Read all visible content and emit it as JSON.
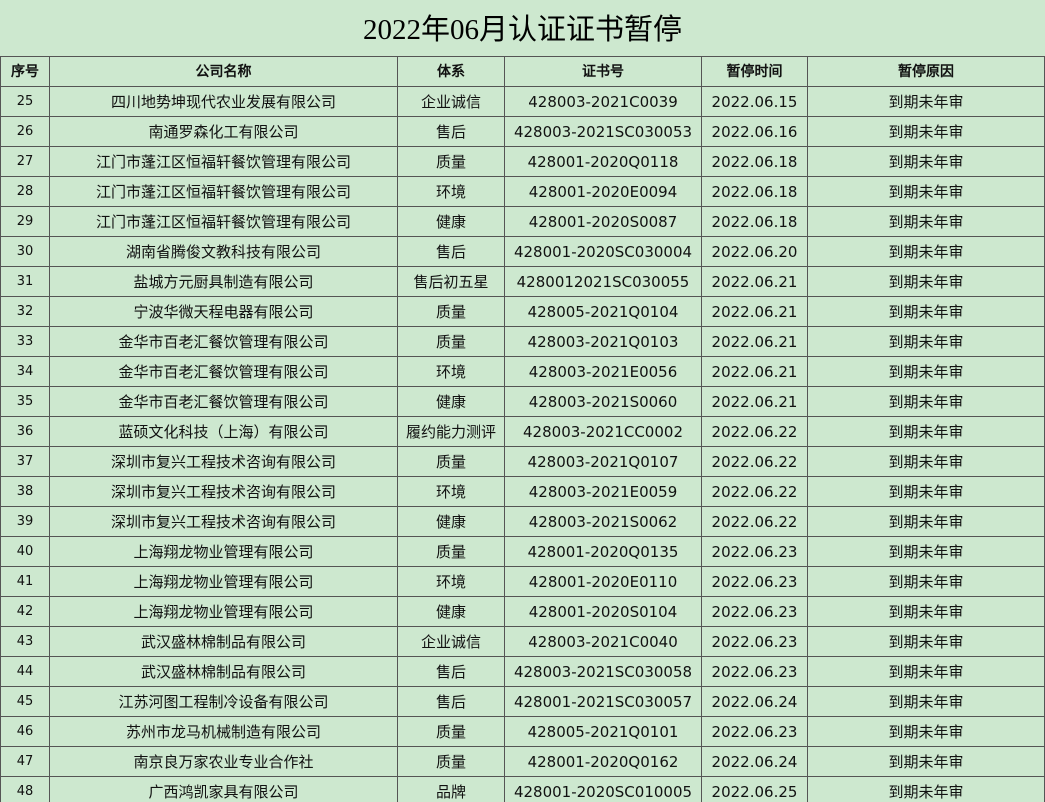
{
  "title": "2022年06月认证证书暂停",
  "table": {
    "headers": [
      "序号",
      "公司名称",
      "体系",
      "证书号",
      "暂停时间",
      "暂停原因"
    ],
    "rows": [
      [
        "25",
        "四川地势坤现代农业发展有限公司",
        "企业诚信",
        "428003-2021C0039",
        "2022.06.15",
        "到期未年审"
      ],
      [
        "26",
        "南通罗森化工有限公司",
        "售后",
        "428003-2021SC030053",
        "2022.06.16",
        "到期未年审"
      ],
      [
        "27",
        "江门市蓬江区恒福轩餐饮管理有限公司",
        "质量",
        "428001-2020Q0118",
        "2022.06.18",
        "到期未年审"
      ],
      [
        "28",
        "江门市蓬江区恒福轩餐饮管理有限公司",
        "环境",
        "428001-2020E0094",
        "2022.06.18",
        "到期未年审"
      ],
      [
        "29",
        "江门市蓬江区恒福轩餐饮管理有限公司",
        "健康",
        "428001-2020S0087",
        "2022.06.18",
        "到期未年审"
      ],
      [
        "30",
        "湖南省腾俊文教科技有限公司",
        "售后",
        "428001-2020SC030004",
        "2022.06.20",
        "到期未年审"
      ],
      [
        "31",
        "盐城方元厨具制造有限公司",
        "售后初五星",
        "4280012021SC030055",
        "2022.06.21",
        "到期未年审"
      ],
      [
        "32",
        "宁波华微天程电器有限公司",
        "质量",
        "428005-2021Q0104",
        "2022.06.21",
        "到期未年审"
      ],
      [
        "33",
        "金华市百老汇餐饮管理有限公司",
        "质量",
        "428003-2021Q0103",
        "2022.06.21",
        "到期未年审"
      ],
      [
        "34",
        "金华市百老汇餐饮管理有限公司",
        "环境",
        "428003-2021E0056",
        "2022.06.21",
        "到期未年审"
      ],
      [
        "35",
        "金华市百老汇餐饮管理有限公司",
        "健康",
        "428003-2021S0060",
        "2022.06.21",
        "到期未年审"
      ],
      [
        "36",
        "蓝硕文化科技（上海）有限公司",
        "履约能力测评",
        "428003-2021CC0002",
        "2022.06.22",
        "到期未年审"
      ],
      [
        "37",
        "深圳市复兴工程技术咨询有限公司",
        "质量",
        "428003-2021Q0107",
        "2022.06.22",
        "到期未年审"
      ],
      [
        "38",
        "深圳市复兴工程技术咨询有限公司",
        "环境",
        "428003-2021E0059",
        "2022.06.22",
        "到期未年审"
      ],
      [
        "39",
        "深圳市复兴工程技术咨询有限公司",
        "健康",
        "428003-2021S0062",
        "2022.06.22",
        "到期未年审"
      ],
      [
        "40",
        "上海翔龙物业管理有限公司",
        "质量",
        "428001-2020Q0135",
        "2022.06.23",
        "到期未年审"
      ],
      [
        "41",
        "上海翔龙物业管理有限公司",
        "环境",
        "428001-2020E0110",
        "2022.06.23",
        "到期未年审"
      ],
      [
        "42",
        "上海翔龙物业管理有限公司",
        "健康",
        "428001-2020S0104",
        "2022.06.23",
        "到期未年审"
      ],
      [
        "43",
        "武汉盛林棉制品有限公司",
        "企业诚信",
        "428003-2021C0040",
        "2022.06.23",
        "到期未年审"
      ],
      [
        "44",
        "武汉盛林棉制品有限公司",
        "售后",
        "428003-2021SC030058",
        "2022.06.23",
        "到期未年审"
      ],
      [
        "45",
        "江苏河图工程制冷设备有限公司",
        "售后",
        "428001-2021SC030057",
        "2022.06.24",
        "到期未年审"
      ],
      [
        "46",
        "苏州市龙马机械制造有限公司",
        "质量",
        "428005-2021Q0101",
        "2022.06.23",
        "到期未年审"
      ],
      [
        "47",
        "南京良万家农业专业合作社",
        "质量",
        "428001-2020Q0162",
        "2022.06.24",
        "到期未年审"
      ],
      [
        "48",
        "广西鸿凯家具有限公司",
        "品牌",
        "428001-2020SC010005",
        "2022.06.25",
        "到期未年审"
      ]
    ]
  }
}
